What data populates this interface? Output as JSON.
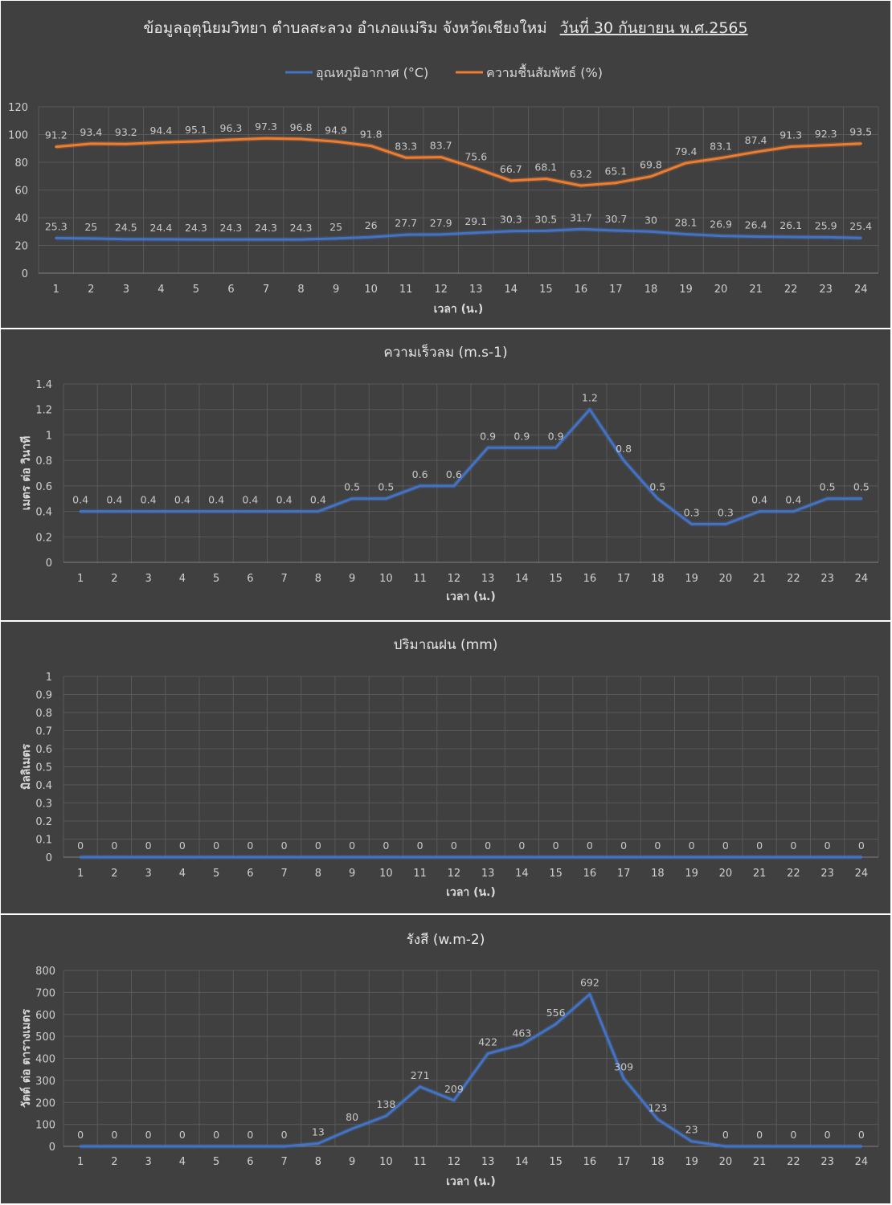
{
  "chart_data": [
    {
      "type": "line",
      "title": "ข้อมูลอุตุนิยมวิทยา ตำบลสะลวง อำเภอแม่ริม จังหวัดเชียงใหม่",
      "title_date": "วันที่ 30 กันยายน พ.ศ.2565",
      "xlabel": "เวลา (น.)",
      "ylabel": "",
      "ylim": [
        0,
        120
      ],
      "yticks": [
        "0",
        "20",
        "40",
        "60",
        "80",
        "100",
        "120"
      ],
      "legend_position": "top",
      "grid": true,
      "x": [
        "1",
        "2",
        "3",
        "4",
        "5",
        "6",
        "7",
        "8",
        "9",
        "10",
        "11",
        "12",
        "13",
        "14",
        "15",
        "16",
        "17",
        "18",
        "19",
        "20",
        "21",
        "22",
        "23",
        "24"
      ],
      "series": [
        {
          "name": "อุณหภูมิอากาศ (°C)",
          "color": "#4472c4",
          "values": [
            25.3,
            25,
            24.5,
            24.4,
            24.3,
            24.3,
            24.3,
            24.3,
            25,
            26,
            27.7,
            27.9,
            29.1,
            30.3,
            30.5,
            31.7,
            30.7,
            30,
            28.1,
            26.9,
            26.4,
            26.1,
            25.9,
            25.4
          ]
        },
        {
          "name": "ความชื้นสัมพัทธ์ (%)",
          "color": "#ed7d31",
          "values": [
            91.2,
            93.4,
            93.2,
            94.4,
            95.1,
            96.3,
            97.3,
            96.8,
            94.9,
            91.8,
            83.3,
            83.7,
            75.6,
            66.7,
            68.1,
            63.2,
            65.1,
            69.8,
            79.4,
            83.1,
            87.4,
            91.3,
            92.3,
            93.5
          ]
        }
      ]
    },
    {
      "type": "line",
      "title": "ความเร็วลม (m.s-1)",
      "xlabel": "เวลา (น.)",
      "ylabel": "เมตร ต่อ วินาที",
      "ylim": [
        0,
        1.4
      ],
      "yticks": [
        "0",
        "0.2",
        "0.4",
        "0.6",
        "0.8",
        "1",
        "1.2",
        "1.4"
      ],
      "grid": true,
      "x": [
        "1",
        "2",
        "3",
        "4",
        "5",
        "6",
        "7",
        "8",
        "9",
        "10",
        "11",
        "12",
        "13",
        "14",
        "15",
        "16",
        "17",
        "18",
        "19",
        "20",
        "21",
        "22",
        "23",
        "24"
      ],
      "series": [
        {
          "color": "#4472c4",
          "values": [
            0.4,
            0.4,
            0.4,
            0.4,
            0.4,
            0.4,
            0.4,
            0.4,
            0.5,
            0.5,
            0.6,
            0.6,
            0.9,
            0.9,
            0.9,
            1.2,
            0.8,
            0.5,
            0.3,
            0.3,
            0.4,
            0.4,
            0.5,
            0.5
          ]
        }
      ]
    },
    {
      "type": "line",
      "title": "ปริมาณฝน (mm)",
      "xlabel": "เวลา (น.)",
      "ylabel": "มิลลิเมตร",
      "ylim": [
        0,
        1
      ],
      "yticks": [
        "0",
        "0.1",
        "0.2",
        "0.3",
        "0.4",
        "0.5",
        "0.6",
        "0.7",
        "0.8",
        "0.9",
        "1"
      ],
      "grid": true,
      "x": [
        "1",
        "2",
        "3",
        "4",
        "5",
        "6",
        "7",
        "8",
        "9",
        "10",
        "11",
        "12",
        "13",
        "14",
        "15",
        "16",
        "17",
        "18",
        "19",
        "20",
        "21",
        "22",
        "23",
        "24"
      ],
      "series": [
        {
          "color": "#4472c4",
          "values": [
            0,
            0,
            0,
            0,
            0,
            0,
            0,
            0,
            0,
            0,
            0,
            0,
            0,
            0,
            0,
            0,
            0,
            0,
            0,
            0,
            0,
            0,
            0,
            0
          ]
        }
      ]
    },
    {
      "type": "line",
      "title": "รังสี (w.m-2)",
      "xlabel": "เวลา (น.)",
      "ylabel": "วัตต์ ต่อ ตารางเมตร",
      "ylim": [
        0,
        800
      ],
      "yticks": [
        "0",
        "100",
        "200",
        "300",
        "400",
        "500",
        "600",
        "700",
        "800"
      ],
      "grid": true,
      "x": [
        "1",
        "2",
        "3",
        "4",
        "5",
        "6",
        "7",
        "8",
        "9",
        "10",
        "11",
        "12",
        "13",
        "14",
        "15",
        "16",
        "17",
        "18",
        "19",
        "20",
        "21",
        "22",
        "23",
        "24"
      ],
      "series": [
        {
          "color": "#4472c4",
          "values": [
            0,
            0,
            0,
            0,
            0,
            0,
            0,
            13,
            80,
            138,
            271,
            209,
            422,
            463,
            556,
            692,
            309,
            123,
            23,
            0,
            0,
            0,
            0,
            0
          ]
        }
      ]
    }
  ]
}
